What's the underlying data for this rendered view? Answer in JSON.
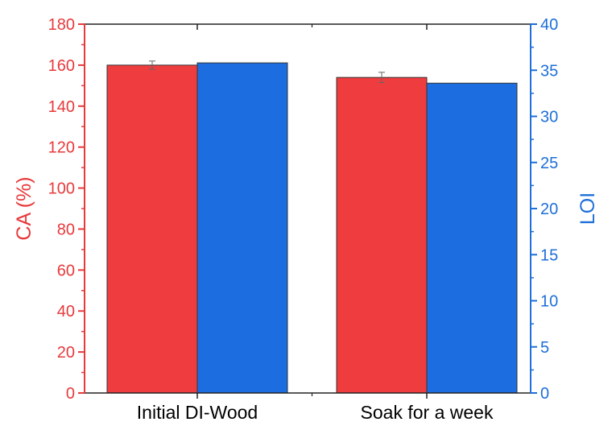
{
  "chart_data": {
    "type": "bar",
    "categories": [
      "Initial DI-Wood",
      "Soak for a week"
    ],
    "series": [
      {
        "name": "",
        "axis": "left",
        "color": "#ef3c3f",
        "values": [
          160,
          154
        ],
        "errors": [
          2,
          2.5
        ]
      },
      {
        "name": "",
        "axis": "right",
        "color": "#1c6ddf",
        "values": [
          35.8,
          33.6
        ]
      }
    ],
    "ylabel": "CA (%)",
    "ylabel_color": "#e8393b",
    "ylim": [
      0,
      180
    ],
    "yticks": [
      "0",
      "20",
      "40",
      "60",
      "80",
      "100",
      "120",
      "140",
      "160",
      "180"
    ],
    "y2label": "LOI",
    "y2label_color": "#1d6fd9",
    "y2lim": [
      0,
      40
    ],
    "y2ticks": [
      "0",
      "5",
      "10",
      "15",
      "20",
      "25",
      "30",
      "35",
      "40"
    ],
    "xlabel": "",
    "title": "",
    "grid": false,
    "legend": "none"
  }
}
